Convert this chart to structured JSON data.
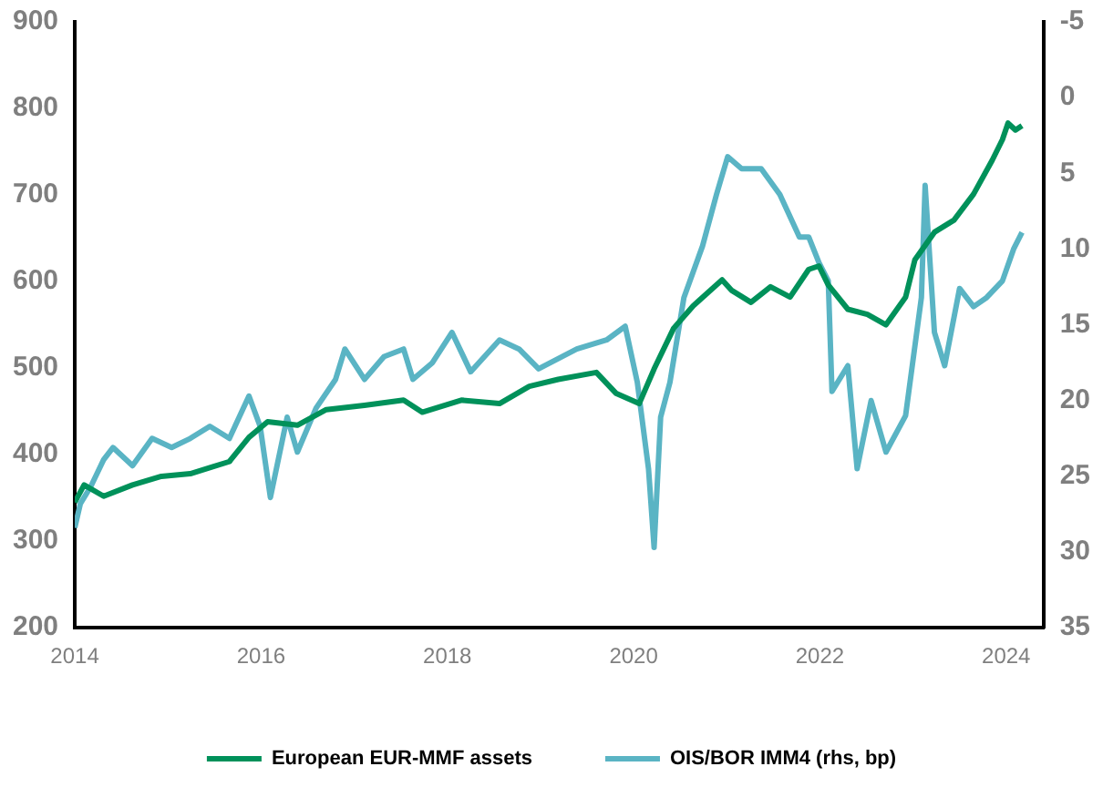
{
  "chart_data": {
    "type": "line",
    "xlim": [
      2014,
      2024.4
    ],
    "xticks": [
      2014,
      2016,
      2018,
      2020,
      2022,
      2024
    ],
    "ylim": [
      200,
      900
    ],
    "yticks": [
      200,
      300,
      400,
      500,
      600,
      700,
      800,
      900
    ],
    "y2lim": [
      35,
      -5
    ],
    "y2ticks": [
      -5,
      0,
      5,
      10,
      15,
      20,
      25,
      30,
      35
    ],
    "grid": false,
    "legend": "bottom",
    "line_style": "solid",
    "marker": "none",
    "series": [
      {
        "name": "European EUR-MMF assets",
        "color": "#00915a",
        "x": [
          2014.0,
          2014.1,
          2014.31,
          2014.62,
          2014.93,
          2015.24,
          2015.66,
          2015.87,
          2016.07,
          2016.39,
          2016.7,
          2017.11,
          2017.53,
          2017.73,
          2018.15,
          2018.56,
          2018.88,
          2019.19,
          2019.6,
          2019.81,
          2020.06,
          2020.22,
          2020.43,
          2020.64,
          2020.95,
          2021.05,
          2021.26,
          2021.47,
          2021.68,
          2021.88,
          2021.99,
          2022.09,
          2022.3,
          2022.51,
          2022.71,
          2022.92,
          2023.02,
          2023.23,
          2023.44,
          2023.65,
          2023.85,
          2023.96,
          2024.02,
          2024.1,
          2024.17
        ],
        "values": [
          345,
          365,
          352,
          365,
          375,
          378,
          392,
          420,
          438,
          434,
          452,
          457,
          463,
          449,
          463,
          459,
          479,
          487,
          495,
          471,
          459,
          499,
          546,
          572,
          602,
          590,
          576,
          594,
          582,
          614,
          618,
          596,
          568,
          562,
          550,
          582,
          625,
          657,
          671,
          701,
          740,
          764,
          783,
          775,
          780
        ]
      },
      {
        "name": "OIS/BOR IMM4 (rhs, bp)",
        "color": "#5ab4c4",
        "axis": "y2",
        "x": [
          2014.0,
          2014.06,
          2014.17,
          2014.31,
          2014.41,
          2014.62,
          2014.83,
          2015.04,
          2015.24,
          2015.45,
          2015.66,
          2015.87,
          2015.99,
          2016.1,
          2016.28,
          2016.39,
          2016.59,
          2016.8,
          2016.9,
          2017.11,
          2017.32,
          2017.53,
          2017.63,
          2017.84,
          2018.05,
          2018.25,
          2018.56,
          2018.77,
          2018.98,
          2019.39,
          2019.71,
          2019.91,
          2020.04,
          2020.16,
          2020.22,
          2020.29,
          2020.39,
          2020.54,
          2020.74,
          2020.89,
          2021.01,
          2021.16,
          2021.37,
          2021.57,
          2021.78,
          2021.88,
          2021.99,
          2022.09,
          2022.13,
          2022.3,
          2022.4,
          2022.55,
          2022.71,
          2022.92,
          2023.09,
          2023.13,
          2023.23,
          2023.34,
          2023.5,
          2023.65,
          2023.79,
          2023.96,
          2024.08,
          2024.17
        ],
        "values": [
          28.4,
          26.8,
          25.7,
          23.9,
          23.1,
          24.3,
          22.5,
          23.1,
          22.5,
          21.7,
          22.5,
          19.7,
          21.7,
          26.4,
          21.1,
          23.4,
          20.5,
          18.6,
          16.6,
          18.6,
          17.1,
          16.6,
          18.6,
          17.5,
          15.5,
          18.1,
          16.0,
          16.6,
          17.9,
          16.6,
          16.0,
          15.1,
          18.8,
          24.5,
          29.7,
          21.1,
          18.8,
          13.2,
          9.8,
          6.4,
          3.9,
          4.7,
          4.7,
          6.4,
          9.2,
          9.2,
          10.9,
          12.1,
          19.4,
          17.7,
          24.5,
          20.0,
          23.4,
          21.0,
          13.2,
          5.8,
          15.5,
          17.7,
          12.6,
          13.8,
          13.2,
          12.1,
          10.0,
          8.9
        ]
      }
    ]
  }
}
